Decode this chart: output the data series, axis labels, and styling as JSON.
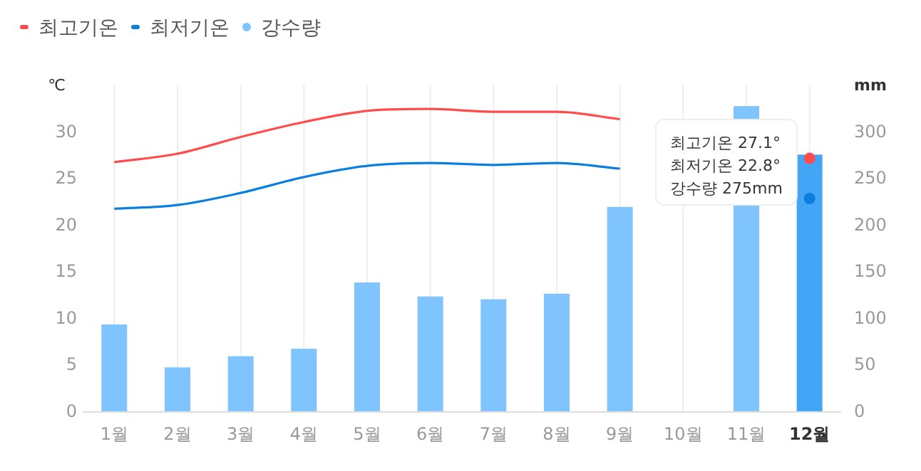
{
  "chart_data": {
    "type": "bar",
    "ylabel": "℃",
    "y2label": "mm",
    "categories": [
      "1월",
      "2월",
      "3월",
      "4월",
      "5월",
      "6월",
      "7월",
      "8월",
      "9월",
      "10월",
      "11월",
      "12월"
    ],
    "series": [
      {
        "name": "최고기온",
        "type": "line",
        "color": "#ff4b4b",
        "values": [
          26.7,
          27.6,
          29.4,
          31.0,
          32.2,
          32.4,
          32.1,
          32.1,
          31.3,
          null,
          null,
          27.1
        ]
      },
      {
        "name": "최저기온",
        "type": "line",
        "color": "#0a7fe0",
        "values": [
          21.7,
          22.1,
          23.4,
          25.1,
          26.3,
          26.6,
          26.4,
          26.6,
          26.0,
          null,
          null,
          22.8
        ]
      },
      {
        "name": "강수량",
        "axis": "y2",
        "colors": [
          "#80c4ff",
          "#80c4ff",
          "#80c4ff",
          "#80c4ff",
          "#80c4ff",
          "#80c4ff",
          "#80c4ff",
          "#80c4ff",
          "#80c4ff",
          null,
          "#80c4ff",
          "#42a5f5"
        ],
        "values": [
          93,
          47,
          59,
          67,
          138,
          123,
          120,
          126,
          219,
          null,
          327,
          275
        ]
      }
    ],
    "ylim": [
      0,
      35
    ],
    "yticks": [
      0,
      5,
      10,
      15,
      20,
      25,
      30
    ],
    "y2lim": [
      0,
      350
    ],
    "y2ticks": [
      0,
      50,
      100,
      150,
      200,
      250,
      300
    ],
    "grid": "x",
    "legend": "top left",
    "annotations": [
      "최고기온 27.1°",
      "최저기온 22.8°",
      "강수량 275mm"
    ]
  }
}
